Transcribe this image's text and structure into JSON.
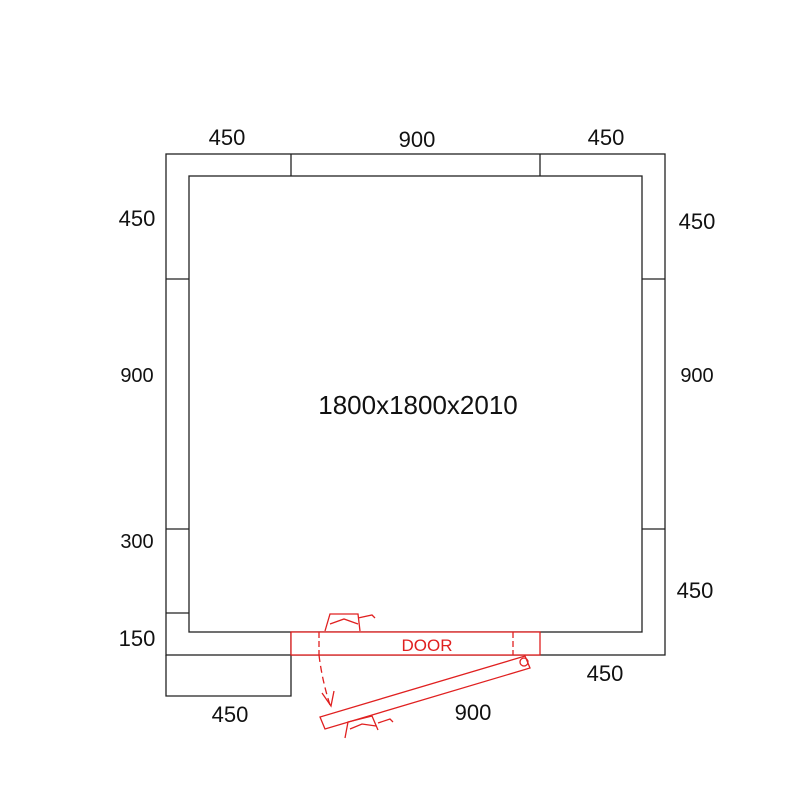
{
  "room_label": "1800x1800x2010",
  "door_label": "DOOR",
  "door_color": "#e02020",
  "dimensions": {
    "top": [
      "450",
      "900",
      "450"
    ],
    "left": [
      "450",
      "900",
      "300",
      "150"
    ],
    "right": [
      "450",
      "900",
      "450"
    ],
    "bottom_left": "450",
    "bottom_right": "450",
    "door_width": "900"
  }
}
